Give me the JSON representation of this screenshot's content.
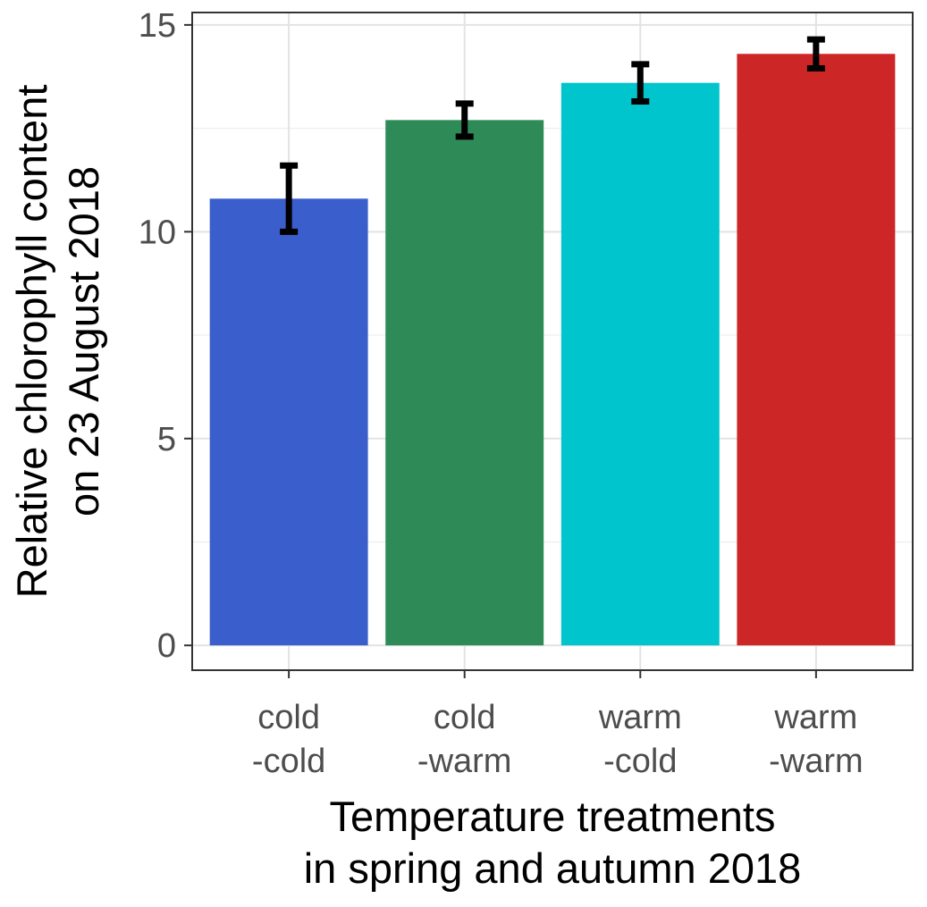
{
  "chart_data": {
    "type": "bar",
    "categories": [
      [
        "cold",
        "-cold"
      ],
      [
        "cold",
        "-warm"
      ],
      [
        "warm",
        "-cold"
      ],
      [
        "warm",
        "-warm"
      ]
    ],
    "values": [
      10.8,
      12.7,
      13.6,
      14.3
    ],
    "error": [
      0.8,
      0.4,
      0.45,
      0.35
    ],
    "colors": [
      "#3a5fcd",
      "#2e8b57",
      "#00c5cd",
      "#cd2626"
    ],
    "xlabel": [
      "Temperature treatments",
      "in spring and autumn 2018"
    ],
    "ylabel": [
      "Relative chlorophyll content",
      "on 23 August 2018"
    ],
    "ylim": [
      -0.6,
      15.3
    ],
    "yticks": [
      0,
      5,
      10,
      15
    ],
    "grid": true,
    "legend": "none"
  }
}
